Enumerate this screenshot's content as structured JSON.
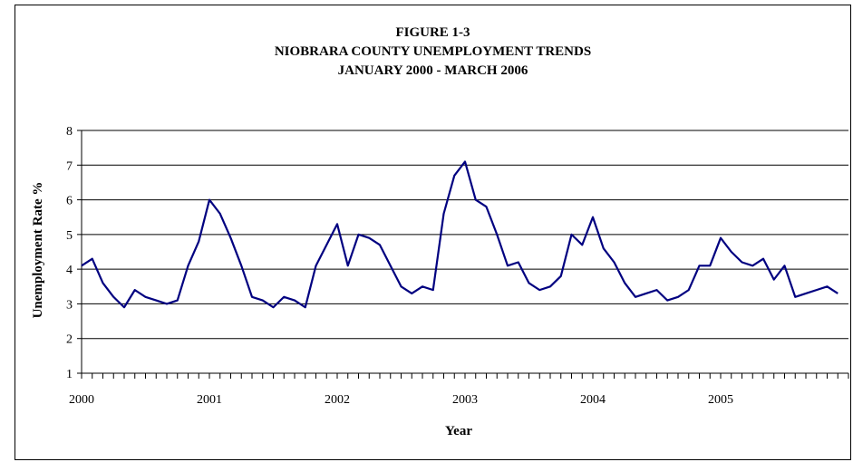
{
  "chart_data": {
    "type": "line",
    "title_lines": [
      "FIGURE 1-3",
      "NIOBRARA COUNTY UNEMPLOYMENT TRENDS",
      "JANUARY 2000 - MARCH 2006"
    ],
    "xlabel": "Year",
    "ylabel": "Unemployment Rate %",
    "ylim": [
      1,
      8
    ],
    "yticks": [
      1,
      2,
      3,
      4,
      5,
      6,
      7,
      8
    ],
    "xtick_labels": [
      "2000",
      "2001",
      "2002",
      "2003",
      "2004",
      "2005"
    ],
    "grid": "horizontal",
    "series_color": "#000080",
    "series": [
      {
        "values": [
          4.1,
          4.3,
          3.6,
          3.2,
          2.9,
          3.4,
          3.2,
          3.1,
          3.0,
          3.1,
          4.1,
          4.8,
          6.0,
          5.6,
          4.9,
          4.1,
          3.2,
          3.1,
          2.9,
          3.2,
          3.1,
          2.9,
          4.1,
          4.7,
          5.3,
          4.1,
          5.0,
          4.9,
          4.7,
          4.1,
          3.5,
          3.3,
          3.5,
          3.4,
          5.6,
          6.7,
          7.1,
          6.0,
          5.8,
          5.0,
          4.1,
          4.2,
          3.6,
          3.4,
          3.5,
          3.8,
          5.0,
          4.7,
          5.5,
          4.6,
          4.2,
          3.6,
          3.2,
          3.3,
          3.4,
          3.1,
          3.2,
          3.4,
          4.1,
          4.1,
          4.9,
          4.5,
          4.2,
          4.1,
          4.3,
          3.7,
          4.1,
          3.2,
          3.3,
          3.4,
          3.5,
          3.3
        ]
      }
    ]
  }
}
